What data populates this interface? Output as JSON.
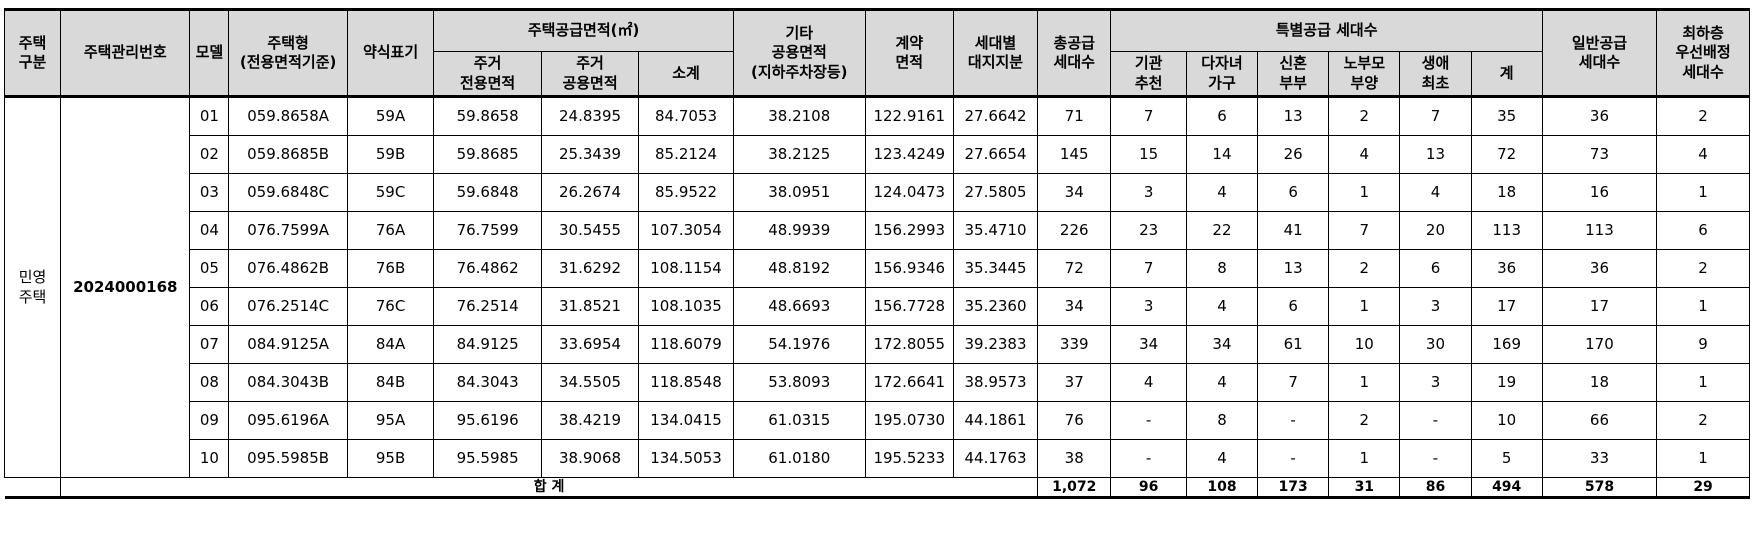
{
  "headers": {
    "housing_type": "주택\n구분",
    "mgmt_no": "주택관리번호",
    "model": "모델",
    "housing_form": "주택형\n(전용면적기준)",
    "abbrev": "약식표기",
    "supply_area": "주택공급면적(㎡)",
    "residential_exclusive": "주거\n전용면적",
    "residential_common": "주거\n공용면적",
    "subtotal": "소계",
    "other_common": "기타\n공용면적\n(지하주차장등)",
    "contract_area": "계약\n면적",
    "land_share": "세대별\n대지지분",
    "total_supply": "총공급\n세대수",
    "special_supply": "특별공급 세대수",
    "institution": "기관\n추천",
    "multi_child": "다자녀\n가구",
    "newlywed": "신혼\n부부",
    "elderly_parent": "노부모\n부양",
    "first_home": "생애\n최초",
    "special_total": "계",
    "general_supply": "일반공급\n세대수",
    "lowest_floor": "최하층\n우선배정\n세대수"
  },
  "category": "민영\n주택",
  "mgmt_number": "2024000168",
  "rows": [
    {
      "model": "01",
      "type": "059.8658A",
      "abbr": "59A",
      "excl": "59.8658",
      "common": "24.8395",
      "sub": "84.7053",
      "other": "38.2108",
      "contract": "122.9161",
      "land": "27.6642",
      "total": "71",
      "inst": "7",
      "multi": "6",
      "newly": "13",
      "elder": "2",
      "first": "7",
      "sp_total": "35",
      "general": "36",
      "lowest": "2"
    },
    {
      "model": "02",
      "type": "059.8685B",
      "abbr": "59B",
      "excl": "59.8685",
      "common": "25.3439",
      "sub": "85.2124",
      "other": "38.2125",
      "contract": "123.4249",
      "land": "27.6654",
      "total": "145",
      "inst": "15",
      "multi": "14",
      "newly": "26",
      "elder": "4",
      "first": "13",
      "sp_total": "72",
      "general": "73",
      "lowest": "4"
    },
    {
      "model": "03",
      "type": "059.6848C",
      "abbr": "59C",
      "excl": "59.6848",
      "common": "26.2674",
      "sub": "85.9522",
      "other": "38.0951",
      "contract": "124.0473",
      "land": "27.5805",
      "total": "34",
      "inst": "3",
      "multi": "4",
      "newly": "6",
      "elder": "1",
      "first": "4",
      "sp_total": "18",
      "general": "16",
      "lowest": "1"
    },
    {
      "model": "04",
      "type": "076.7599A",
      "abbr": "76A",
      "excl": "76.7599",
      "common": "30.5455",
      "sub": "107.3054",
      "other": "48.9939",
      "contract": "156.2993",
      "land": "35.4710",
      "total": "226",
      "inst": "23",
      "multi": "22",
      "newly": "41",
      "elder": "7",
      "first": "20",
      "sp_total": "113",
      "general": "113",
      "lowest": "6"
    },
    {
      "model": "05",
      "type": "076.4862B",
      "abbr": "76B",
      "excl": "76.4862",
      "common": "31.6292",
      "sub": "108.1154",
      "other": "48.8192",
      "contract": "156.9346",
      "land": "35.3445",
      "total": "72",
      "inst": "7",
      "multi": "8",
      "newly": "13",
      "elder": "2",
      "first": "6",
      "sp_total": "36",
      "general": "36",
      "lowest": "2"
    },
    {
      "model": "06",
      "type": "076.2514C",
      "abbr": "76C",
      "excl": "76.2514",
      "common": "31.8521",
      "sub": "108.1035",
      "other": "48.6693",
      "contract": "156.7728",
      "land": "35.2360",
      "total": "34",
      "inst": "3",
      "multi": "4",
      "newly": "6",
      "elder": "1",
      "first": "3",
      "sp_total": "17",
      "general": "17",
      "lowest": "1"
    },
    {
      "model": "07",
      "type": "084.9125A",
      "abbr": "84A",
      "excl": "84.9125",
      "common": "33.6954",
      "sub": "118.6079",
      "other": "54.1976",
      "contract": "172.8055",
      "land": "39.2383",
      "total": "339",
      "inst": "34",
      "multi": "34",
      "newly": "61",
      "elder": "10",
      "first": "30",
      "sp_total": "169",
      "general": "170",
      "lowest": "9"
    },
    {
      "model": "08",
      "type": "084.3043B",
      "abbr": "84B",
      "excl": "84.3043",
      "common": "34.5505",
      "sub": "118.8548",
      "other": "53.8093",
      "contract": "172.6641",
      "land": "38.9573",
      "total": "37",
      "inst": "4",
      "multi": "4",
      "newly": "7",
      "elder": "1",
      "first": "3",
      "sp_total": "19",
      "general": "18",
      "lowest": "1"
    },
    {
      "model": "09",
      "type": "095.6196A",
      "abbr": "95A",
      "excl": "95.6196",
      "common": "38.4219",
      "sub": "134.0415",
      "other": "61.0315",
      "contract": "195.0730",
      "land": "44.1861",
      "total": "76",
      "inst": "-",
      "multi": "8",
      "newly": "-",
      "elder": "2",
      "first": "-",
      "sp_total": "10",
      "general": "66",
      "lowest": "2"
    },
    {
      "model": "10",
      "type": "095.5985B",
      "abbr": "95B",
      "excl": "95.5985",
      "common": "38.9068",
      "sub": "134.5053",
      "other": "61.0180",
      "contract": "195.5233",
      "land": "44.1763",
      "total": "38",
      "inst": "-",
      "multi": "4",
      "newly": "-",
      "elder": "1",
      "first": "-",
      "sp_total": "5",
      "general": "33",
      "lowest": "1"
    }
  ],
  "totals": {
    "label": "합 계",
    "total": "1,072",
    "inst": "96",
    "multi": "108",
    "newly": "173",
    "elder": "31",
    "first": "86",
    "sp_total": "494",
    "general": "578",
    "lowest": "29"
  }
}
